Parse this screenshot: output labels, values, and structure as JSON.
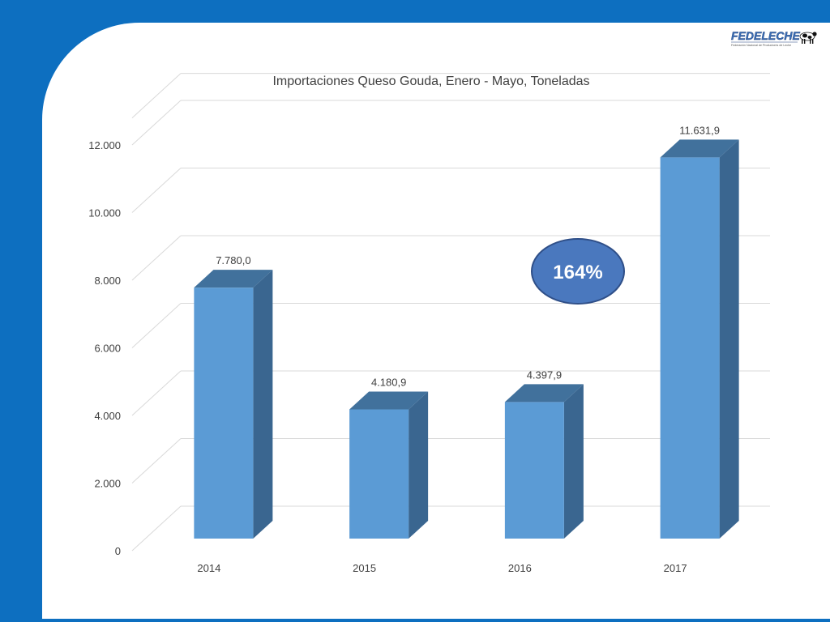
{
  "logo": {
    "text": "FEDELECHE",
    "subtitle": "Federación Nacional de Productores de Leche"
  },
  "chart_data": {
    "type": "bar",
    "title": "Importaciones Queso Gouda, Enero - Mayo, Toneladas",
    "categories": [
      "2014",
      "2015",
      "2016",
      "2017"
    ],
    "values": [
      7780.0,
      4180.9,
      4397.9,
      11631.9
    ],
    "value_labels": [
      "7.780,0",
      "4.180,9",
      "4.397,9",
      "11.631,9"
    ],
    "y_ticks": [
      0,
      2000,
      4000,
      6000,
      8000,
      10000,
      12000
    ],
    "y_tick_labels": [
      "0",
      "2.000",
      "4.000",
      "6.000",
      "8.000",
      "10.000",
      "12.000"
    ],
    "ylim": [
      0,
      12800
    ],
    "grid": true,
    "legend": "none",
    "style": "3d-column"
  },
  "annotation": {
    "text": "164%"
  },
  "colors": {
    "background": "#0d6fc0",
    "bar_front": "#5b9bd5",
    "bar_top": "#41719c",
    "bar_side": "#3a6690",
    "gridline": "#d9d9d9",
    "annotation_fill": "#4a78be",
    "annotation_stroke": "#2f4f88",
    "annotation_text": "#ffffff"
  }
}
